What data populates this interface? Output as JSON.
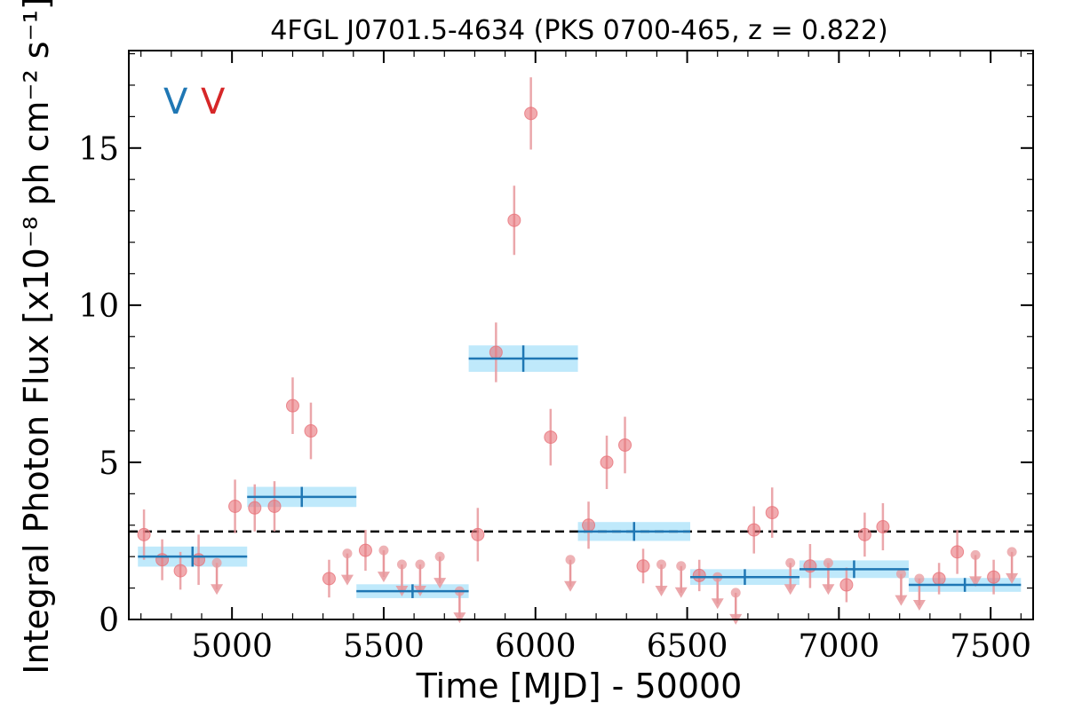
{
  "chart_data": {
    "type": "scatter",
    "title": "4FGL J0701.5-4634 (PKS 0700-465, z = 0.822)",
    "xlabel": "Time [MJD] - 50000",
    "ylabel": "Integral Photon Flux [x10⁻⁸ ph cm⁻² s⁻¹]",
    "xlim": [
      4660,
      7640
    ],
    "ylim": [
      0,
      18.1
    ],
    "x_ticks": [
      5000,
      5500,
      6000,
      6500,
      7000,
      7500
    ],
    "x_tick_labels": [
      "5000",
      "5500",
      "6000",
      "6500",
      "7000",
      "7500"
    ],
    "y_ticks": [
      0,
      5,
      10,
      15
    ],
    "y_tick_labels": [
      "0",
      "5",
      "10",
      "15"
    ],
    "grid": false,
    "legend": "none",
    "colors": {
      "points": "#e8737a",
      "points_error": "#e8989c",
      "blocks": "#1f77b4",
      "block_band": "#bfe9fb",
      "mean_line": "#000000",
      "v_blue": "#1f77b4",
      "v_red": "#d62728"
    },
    "annotations": [
      {
        "text": "V",
        "color": "#1f77b4"
      },
      {
        "text": "V",
        "color": "#d62728"
      }
    ],
    "mean_flux": 2.8,
    "points": [
      {
        "x": 4710,
        "y": 2.7,
        "err": 0.8
      },
      {
        "x": 4770,
        "y": 1.9,
        "err": 0.65
      },
      {
        "x": 4830,
        "y": 1.55,
        "err": 0.6
      },
      {
        "x": 4890,
        "y": 1.9,
        "err": 0.8
      },
      {
        "x": 5010,
        "y": 3.6,
        "err": 0.85
      },
      {
        "x": 5075,
        "y": 3.55,
        "err": 0.75
      },
      {
        "x": 5140,
        "y": 3.6,
        "err": 0.8
      },
      {
        "x": 5200,
        "y": 6.8,
        "err": 0.9
      },
      {
        "x": 5260,
        "y": 6.0,
        "err": 0.9
      },
      {
        "x": 5320,
        "y": 1.3,
        "err": 0.6
      },
      {
        "x": 5440,
        "y": 2.2,
        "err": 0.65
      },
      {
        "x": 5810,
        "y": 2.7,
        "err": 0.85
      },
      {
        "x": 5870,
        "y": 8.5,
        "err": 0.95
      },
      {
        "x": 5930,
        "y": 12.7,
        "err": 1.1
      },
      {
        "x": 5985,
        "y": 16.1,
        "err": 1.15
      },
      {
        "x": 6050,
        "y": 5.8,
        "err": 0.9
      },
      {
        "x": 6175,
        "y": 3.0,
        "err": 0.75
      },
      {
        "x": 6235,
        "y": 5.0,
        "err": 0.85
      },
      {
        "x": 6295,
        "y": 5.55,
        "err": 0.9
      },
      {
        "x": 6355,
        "y": 1.7,
        "err": 0.55
      },
      {
        "x": 6540,
        "y": 1.4,
        "err": 0.5
      },
      {
        "x": 6720,
        "y": 2.85,
        "err": 0.75
      },
      {
        "x": 6780,
        "y": 3.4,
        "err": 0.8
      },
      {
        "x": 6905,
        "y": 1.7,
        "err": 0.7
      },
      {
        "x": 7025,
        "y": 1.1,
        "err": 0.55
      },
      {
        "x": 7085,
        "y": 2.7,
        "err": 0.7
      },
      {
        "x": 7145,
        "y": 2.95,
        "err": 0.75
      },
      {
        "x": 7330,
        "y": 1.3,
        "err": 0.5
      },
      {
        "x": 7390,
        "y": 2.15,
        "err": 0.7
      },
      {
        "x": 7510,
        "y": 1.35,
        "err": 0.55
      }
    ],
    "upper_limits": [
      {
        "x": 4950,
        "y": 1.8
      },
      {
        "x": 5380,
        "y": 2.1
      },
      {
        "x": 5500,
        "y": 2.2
      },
      {
        "x": 5560,
        "y": 1.75
      },
      {
        "x": 5620,
        "y": 1.75
      },
      {
        "x": 5685,
        "y": 2.0
      },
      {
        "x": 5750,
        "y": 0.9
      },
      {
        "x": 6115,
        "y": 1.9
      },
      {
        "x": 6415,
        "y": 1.75
      },
      {
        "x": 6480,
        "y": 1.7
      },
      {
        "x": 6600,
        "y": 1.35
      },
      {
        "x": 6660,
        "y": 0.85
      },
      {
        "x": 6840,
        "y": 1.8
      },
      {
        "x": 6965,
        "y": 1.8
      },
      {
        "x": 7205,
        "y": 1.45
      },
      {
        "x": 7265,
        "y": 1.3
      },
      {
        "x": 7450,
        "y": 2.05
      },
      {
        "x": 7570,
        "y": 2.15
      }
    ],
    "blocks": [
      {
        "x0": 4690,
        "x1": 5050,
        "xc": 4870,
        "y": 2.0,
        "err": 0.32
      },
      {
        "x0": 5050,
        "x1": 5410,
        "xc": 5230,
        "y": 3.9,
        "err": 0.32
      },
      {
        "x0": 5410,
        "x1": 5780,
        "xc": 5595,
        "y": 0.9,
        "err": 0.22
      },
      {
        "x0": 5780,
        "x1": 6140,
        "xc": 5960,
        "y": 8.3,
        "err": 0.42
      },
      {
        "x0": 6140,
        "x1": 6510,
        "xc": 6325,
        "y": 2.8,
        "err": 0.3
      },
      {
        "x0": 6510,
        "x1": 6870,
        "xc": 6690,
        "y": 1.35,
        "err": 0.25
      },
      {
        "x0": 6870,
        "x1": 7230,
        "xc": 7050,
        "y": 1.6,
        "err": 0.28
      },
      {
        "x0": 7230,
        "x1": 7600,
        "xc": 7415,
        "y": 1.1,
        "err": 0.22
      }
    ]
  }
}
